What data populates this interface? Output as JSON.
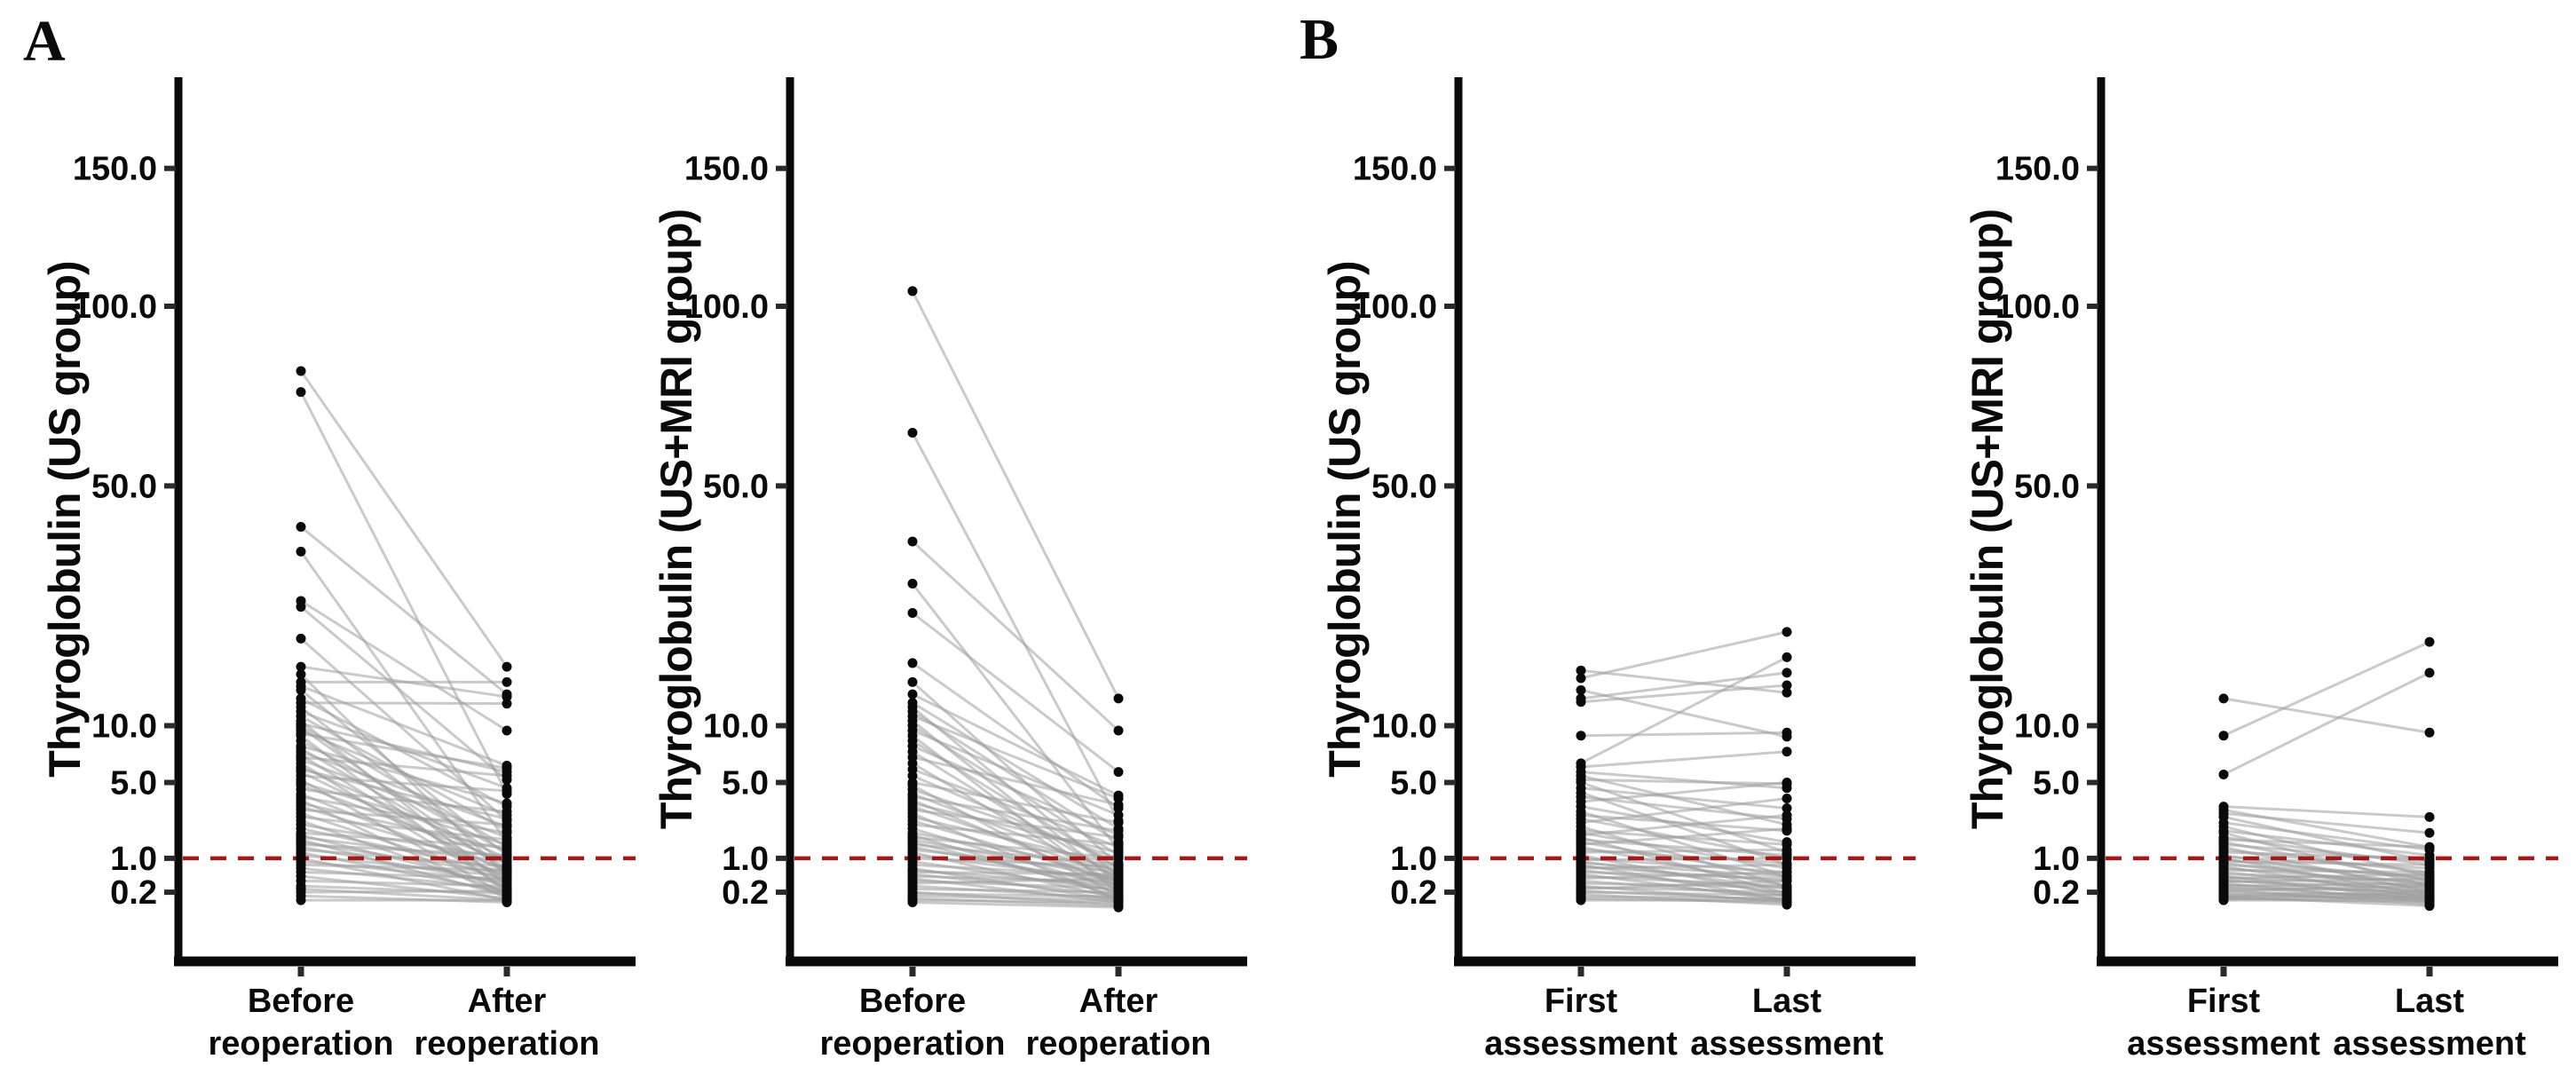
{
  "figure": {
    "background": "#ffffff",
    "panel_labels": [
      {
        "text": "A"
      },
      {
        "text": "B"
      }
    ]
  },
  "style": {
    "dot_color": "#0a0a0a",
    "pair_line_color": "#9f9f9f",
    "reference_line_color": "#a51818",
    "axis_color": "#0a0a0a",
    "text_color": "#0a0a0a"
  },
  "chart_data": [
    {
      "type": "scatter",
      "subtype": "paired-dot-plot",
      "panel": "A",
      "title": "",
      "ylabel": "Thyroglobulin (US group)",
      "categories": [
        "Before reoperation",
        "After reoperation"
      ],
      "category_lines": [
        [
          "Before",
          "reoperation"
        ],
        [
          "After",
          "reoperation"
        ]
      ],
      "yticks": [
        150.0,
        100.0,
        50.0,
        10.0,
        5.0,
        1.0,
        0.2
      ],
      "ytick_labels": [
        "150.0",
        "100.0",
        "50.0",
        "10.0",
        "5.0",
        "1.0",
        "0.2"
      ],
      "y_scale": "sqrt",
      "ylim": [
        0,
        190
      ],
      "grid": false,
      "legend": "none",
      "reference_line": {
        "value": 1.0,
        "style": "dashed"
      },
      "pairs": [
        [
          80,
          17
        ],
        [
          74,
          4.2
        ],
        [
          41,
          13.5
        ],
        [
          36,
          1.6
        ],
        [
          27,
          9.5
        ],
        [
          26,
          5.2
        ],
        [
          21,
          2.6
        ],
        [
          17,
          13.2
        ],
        [
          16,
          0.5
        ],
        [
          15,
          15
        ],
        [
          14.5,
          6.3
        ],
        [
          14,
          1.1
        ],
        [
          13,
          3.4
        ],
        [
          12.5,
          12.4
        ],
        [
          12,
          0.8
        ],
        [
          11.5,
          4.6
        ],
        [
          11,
          2.1
        ],
        [
          10.5,
          0.3
        ],
        [
          10.2,
          5.8
        ],
        [
          10,
          1.4
        ],
        [
          9.8,
          0.6
        ],
        [
          9.5,
          2.9
        ],
        [
          9.2,
          6.1
        ],
        [
          9,
          0.2
        ],
        [
          8.5,
          1.2
        ],
        [
          8,
          3.6
        ],
        [
          7.8,
          0.7
        ],
        [
          7.5,
          2.3
        ],
        [
          7.2,
          0.4
        ],
        [
          7,
          5.5
        ],
        [
          6.8,
          1.8
        ],
        [
          6.5,
          0.25
        ],
        [
          6.2,
          1
        ],
        [
          6,
          2.7
        ],
        [
          5.8,
          0.6
        ],
        [
          5.5,
          4.4
        ],
        [
          5.2,
          0.15
        ],
        [
          5,
          1.5
        ],
        [
          4.8,
          0.9
        ],
        [
          4.5,
          3.1
        ],
        [
          4.2,
          0.5
        ],
        [
          4,
          2
        ],
        [
          3.8,
          0.12
        ],
        [
          3.6,
          1.3
        ],
        [
          3.4,
          0.7
        ],
        [
          3.2,
          2.4
        ],
        [
          3,
          0.4
        ],
        [
          2.8,
          1.7
        ],
        [
          2.6,
          0.2
        ],
        [
          2.4,
          1
        ],
        [
          2.2,
          0.6
        ],
        [
          2,
          1.4
        ],
        [
          1.9,
          0.3
        ],
        [
          1.8,
          0.9
        ],
        [
          1.7,
          0.15
        ],
        [
          1.6,
          0.55
        ],
        [
          1.5,
          1.1
        ],
        [
          1.4,
          0.35
        ],
        [
          1.3,
          0.75
        ],
        [
          1.2,
          0.2
        ],
        [
          1.1,
          0.5
        ],
        [
          1,
          0.1
        ],
        [
          0.9,
          0.4
        ],
        [
          0.8,
          0.65
        ],
        [
          0.7,
          0.25
        ],
        [
          0.6,
          0.45
        ],
        [
          0.5,
          0.12
        ],
        [
          0.4,
          0.3
        ],
        [
          0.3,
          0.18
        ],
        [
          0.25,
          0.1
        ],
        [
          0.2,
          0.22
        ],
        [
          0.15,
          0.08
        ],
        [
          0.1,
          0.1
        ]
      ]
    },
    {
      "type": "scatter",
      "subtype": "paired-dot-plot",
      "panel": "A",
      "title": "",
      "ylabel": "Thyroglobulin (US+MRI group)",
      "categories": [
        "Before reoperation",
        "After reoperation"
      ],
      "category_lines": [
        [
          "Before",
          "reoperation"
        ],
        [
          "After",
          "reoperation"
        ]
      ],
      "yticks": [
        150.0,
        100.0,
        50.0,
        10.0,
        5.0,
        1.0,
        0.2
      ],
      "ytick_labels": [
        "150.0",
        "100.0",
        "50.0",
        "10.0",
        "5.0",
        "1.0",
        "0.2"
      ],
      "y_scale": "sqrt",
      "ylim": [
        0,
        190
      ],
      "grid": false,
      "legend": "none",
      "reference_line": {
        "value": 1.0,
        "style": "dashed"
      },
      "pairs": [
        [
          105,
          13
        ],
        [
          63,
          2.6
        ],
        [
          38,
          9.5
        ],
        [
          30,
          1.3
        ],
        [
          25,
          5.8
        ],
        [
          17.5,
          3.3
        ],
        [
          15,
          0.8
        ],
        [
          13.5,
          4.1
        ],
        [
          12.5,
          2.2
        ],
        [
          12,
          0.5
        ],
        [
          11.5,
          1.6
        ],
        [
          11,
          3.9
        ],
        [
          10.5,
          0.35
        ],
        [
          10,
          1.1
        ],
        [
          9.5,
          2.9
        ],
        [
          9,
          0.2
        ],
        [
          8.5,
          0.7
        ],
        [
          8,
          1.9
        ],
        [
          7.5,
          0.45
        ],
        [
          7,
          3.5
        ],
        [
          6.5,
          0.3
        ],
        [
          6,
          1.4
        ],
        [
          5.5,
          0.85
        ],
        [
          5,
          2.5
        ],
        [
          4.8,
          0.15
        ],
        [
          4.5,
          1
        ],
        [
          4.2,
          0.6
        ],
        [
          4,
          2.1
        ],
        [
          3.8,
          0.3
        ],
        [
          3.6,
          1.2
        ],
        [
          3.4,
          0.5
        ],
        [
          3.2,
          1.8
        ],
        [
          3,
          0.1
        ],
        [
          2.8,
          0.8
        ],
        [
          2.6,
          0.4
        ],
        [
          2.4,
          1.5
        ],
        [
          2.2,
          0.25
        ],
        [
          2,
          0.65
        ],
        [
          1.9,
          0.14
        ],
        [
          1.8,
          1
        ],
        [
          1.7,
          0.45
        ],
        [
          1.6,
          0.2
        ],
        [
          1.5,
          0.8
        ],
        [
          1.4,
          0.32
        ],
        [
          1.3,
          0.6
        ],
        [
          1.2,
          0.12
        ],
        [
          1.1,
          0.42
        ],
        [
          1,
          0.75
        ],
        [
          0.9,
          0.22
        ],
        [
          0.8,
          0.5
        ],
        [
          0.7,
          0.1
        ],
        [
          0.65,
          0.3
        ],
        [
          0.6,
          0.55
        ],
        [
          0.55,
          0.16
        ],
        [
          0.5,
          0.38
        ],
        [
          0.45,
          0.08
        ],
        [
          0.4,
          0.26
        ],
        [
          0.35,
          0.45
        ],
        [
          0.3,
          0.12
        ],
        [
          0.25,
          0.2
        ],
        [
          0.2,
          0.06
        ],
        [
          0.18,
          0.14
        ],
        [
          0.15,
          0.1
        ],
        [
          0.12,
          0.05
        ],
        [
          0.1,
          0.08
        ],
        [
          0.08,
          0.04
        ]
      ]
    },
    {
      "type": "scatter",
      "subtype": "paired-dot-plot",
      "panel": "B",
      "title": "",
      "ylabel": "Thyroglobulin (US group)",
      "categories": [
        "First assessment",
        "Last assessment"
      ],
      "category_lines": [
        [
          "First",
          "assessment"
        ],
        [
          "Last",
          "assessment"
        ]
      ],
      "yticks": [
        150.0,
        100.0,
        50.0,
        10.0,
        5.0,
        1.0,
        0.2
      ],
      "ytick_labels": [
        "150.0",
        "100.0",
        "50.0",
        "10.0",
        "5.0",
        "1.0",
        "0.2"
      ],
      "y_scale": "sqrt",
      "ylim": [
        0,
        190
      ],
      "grid": false,
      "legend": "none",
      "reference_line": {
        "value": 1.0,
        "style": "dashed"
      },
      "pairs": [
        [
          16.5,
          13.7
        ],
        [
          15.5,
          22
        ],
        [
          14,
          8.9
        ],
        [
          13,
          16.2
        ],
        [
          12.6,
          14.6
        ],
        [
          9,
          9.3
        ],
        [
          6.5,
          18.3
        ],
        [
          6.2,
          7.5
        ],
        [
          5.8,
          4.6
        ],
        [
          5.5,
          2.4
        ],
        [
          5.2,
          4.9
        ],
        [
          5,
          1.2
        ],
        [
          4.6,
          3.3
        ],
        [
          4.3,
          0.8
        ],
        [
          4,
          2.7
        ],
        [
          3.7,
          5
        ],
        [
          3.4,
          1.6
        ],
        [
          3.1,
          0.5
        ],
        [
          2.9,
          2.1
        ],
        [
          2.7,
          1
        ],
        [
          2.5,
          3.9
        ],
        [
          2.3,
          0.3
        ],
        [
          2.1,
          1.5
        ],
        [
          2,
          0.7
        ],
        [
          1.9,
          2.9
        ],
        [
          1.8,
          0.18
        ],
        [
          1.7,
          1.1
        ],
        [
          1.6,
          0.5
        ],
        [
          1.5,
          2.2
        ],
        [
          1.4,
          0.3
        ],
        [
          1.3,
          0.85
        ],
        [
          1.2,
          1.3
        ],
        [
          1.1,
          0.15
        ],
        [
          1,
          0.6
        ],
        [
          0.95,
          1
        ],
        [
          0.9,
          0.25
        ],
        [
          0.85,
          0.5
        ],
        [
          0.8,
          0.1
        ],
        [
          0.75,
          0.4
        ],
        [
          0.7,
          0.8
        ],
        [
          0.65,
          0.2
        ],
        [
          0.6,
          0.45
        ],
        [
          0.55,
          0.1
        ],
        [
          0.5,
          0.3
        ],
        [
          0.45,
          0.6
        ],
        [
          0.4,
          0.15
        ],
        [
          0.35,
          0.28
        ],
        [
          0.3,
          0.08
        ],
        [
          0.28,
          0.2
        ],
        [
          0.25,
          0.4
        ],
        [
          0.22,
          0.1
        ],
        [
          0.2,
          0.16
        ],
        [
          0.17,
          0.06
        ],
        [
          0.14,
          0.12
        ],
        [
          0.12,
          0.08
        ],
        [
          0.1,
          0.1
        ]
      ]
    },
    {
      "type": "scatter",
      "subtype": "paired-dot-plot",
      "panel": "B",
      "title": "",
      "ylabel": "Thyroglobulin (US+MRI group)",
      "categories": [
        "First assessment",
        "Last assessment"
      ],
      "category_lines": [
        [
          "First",
          "assessment"
        ],
        [
          "Last",
          "assessment"
        ]
      ],
      "yticks": [
        150.0,
        100.0,
        50.0,
        10.0,
        5.0,
        1.0,
        0.2
      ],
      "ytick_labels": [
        "150.0",
        "100.0",
        "50.0",
        "10.0",
        "5.0",
        "1.0",
        "0.2"
      ],
      "y_scale": "sqrt",
      "ylim": [
        0,
        190
      ],
      "grid": false,
      "legend": "none",
      "reference_line": {
        "value": 1.0,
        "style": "dashed"
      },
      "pairs": [
        [
          13,
          9.3
        ],
        [
          9,
          20.5
        ],
        [
          5.6,
          16.2
        ],
        [
          3.4,
          2.8
        ],
        [
          3.2,
          1.4
        ],
        [
          3,
          2
        ],
        [
          2.8,
          0.9
        ],
        [
          2.5,
          1.3
        ],
        [
          2.3,
          0.5
        ],
        [
          2.1,
          1.1
        ],
        [
          2,
          0.3
        ],
        [
          1.8,
          0.8
        ],
        [
          1.7,
          1.4
        ],
        [
          1.6,
          0.4
        ],
        [
          1.5,
          0.9
        ],
        [
          1.4,
          0.2
        ],
        [
          1.3,
          0.6
        ],
        [
          1.2,
          1
        ],
        [
          1.1,
          0.3
        ],
        [
          1.05,
          0.7
        ],
        [
          1,
          0.15
        ],
        [
          0.95,
          0.45
        ],
        [
          0.9,
          0.8
        ],
        [
          0.85,
          0.25
        ],
        [
          0.8,
          0.5
        ],
        [
          0.75,
          0.12
        ],
        [
          0.7,
          0.35
        ],
        [
          0.65,
          0.6
        ],
        [
          0.6,
          0.2
        ],
        [
          0.55,
          0.4
        ],
        [
          0.5,
          0.1
        ],
        [
          0.48,
          0.3
        ],
        [
          0.45,
          0.55
        ],
        [
          0.42,
          0.15
        ],
        [
          0.4,
          0.25
        ],
        [
          0.38,
          0.45
        ],
        [
          0.35,
          0.08
        ],
        [
          0.32,
          0.2
        ],
        [
          0.3,
          0.35
        ],
        [
          0.28,
          0.12
        ],
        [
          0.26,
          0.22
        ],
        [
          0.24,
          0.06
        ],
        [
          0.22,
          0.3
        ],
        [
          0.2,
          0.15
        ],
        [
          0.18,
          0.1
        ],
        [
          0.16,
          0.2
        ],
        [
          0.15,
          0.12
        ],
        [
          0.14,
          0.05
        ],
        [
          0.13,
          0.18
        ],
        [
          0.12,
          0.08
        ],
        [
          0.11,
          0.14
        ],
        [
          0.1,
          0.1
        ]
      ]
    }
  ]
}
